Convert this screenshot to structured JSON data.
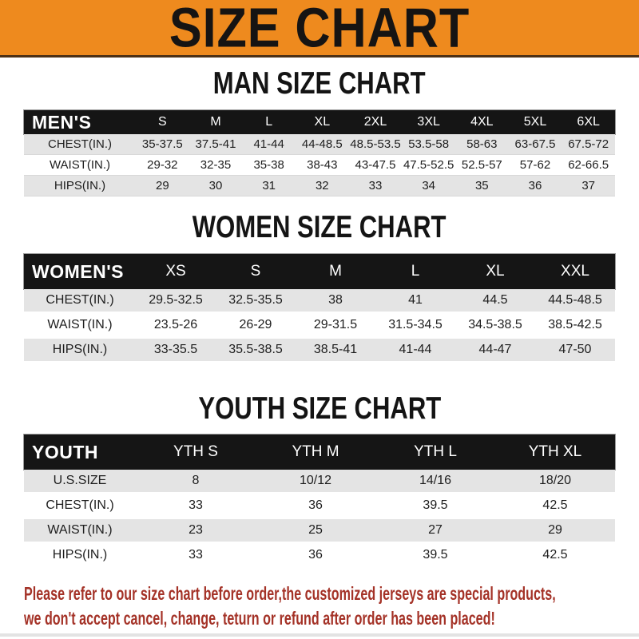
{
  "page": {
    "banner_title": "SIZE CHART",
    "colors": {
      "banner_orange": "#EE8A1E",
      "banner_underline": "#4C3015",
      "band_black": "#151515",
      "row_stripe_gray": "#E4E4E4",
      "footer_red": "#A43227"
    }
  },
  "chart_data": [
    {
      "type": "table",
      "title": "MAN SIZE CHART",
      "band_label": "MEN'S",
      "columns": [
        "S",
        "M",
        "L",
        "XL",
        "2XL",
        "3XL",
        "4XL",
        "5XL",
        "6XL"
      ],
      "rows": [
        {
          "label": "CHEST(IN.)",
          "values": [
            "35-37.5",
            "37.5-41",
            "41-44",
            "44-48.5",
            "48.5-53.5",
            "53.5-58",
            "58-63",
            "63-67.5",
            "67.5-72"
          ]
        },
        {
          "label": "WAIST(IN.)",
          "values": [
            "29-32",
            "32-35",
            "35-38",
            "38-43",
            "43-47.5",
            "47.5-52.5",
            "52.5-57",
            "57-62",
            "62-66.5"
          ]
        },
        {
          "label": "HIPS(IN.)",
          "values": [
            "29",
            "30",
            "31",
            "32",
            "33",
            "34",
            "35",
            "36",
            "37"
          ]
        }
      ]
    },
    {
      "type": "table",
      "title": "WOMEN SIZE CHART",
      "band_label": "WOMEN'S",
      "columns": [
        "XS",
        "S",
        "M",
        "L",
        "XL",
        "XXL"
      ],
      "rows": [
        {
          "label": "CHEST(IN.)",
          "values": [
            "29.5-32.5",
            "32.5-35.5",
            "38",
            "41",
            "44.5",
            "44.5-48.5"
          ]
        },
        {
          "label": "WAIST(IN.)",
          "values": [
            "23.5-26",
            "26-29",
            "29-31.5",
            "31.5-34.5",
            "34.5-38.5",
            "38.5-42.5"
          ]
        },
        {
          "label": "HIPS(IN.)",
          "values": [
            "33-35.5",
            "35.5-38.5",
            "38.5-41",
            "41-44",
            "44-47",
            "47-50"
          ]
        }
      ]
    },
    {
      "type": "table",
      "title": "YOUTH SIZE CHART",
      "band_label": "YOUTH",
      "columns": [
        "YTH S",
        "YTH M",
        "YTH L",
        "YTH XL"
      ],
      "rows": [
        {
          "label": "U.S.SIZE",
          "values": [
            "8",
            "10/12",
            "14/16",
            "18/20"
          ]
        },
        {
          "label": "CHEST(IN.)",
          "values": [
            "33",
            "36",
            "39.5",
            "42.5"
          ]
        },
        {
          "label": "WAIST(IN.)",
          "values": [
            "23",
            "25",
            "27",
            "29"
          ]
        },
        {
          "label": "HIPS(IN.)",
          "values": [
            "33",
            "36",
            "39.5",
            "42.5"
          ]
        }
      ]
    }
  ],
  "footer": {
    "line1": "Please refer to our size chart before order,the customized jerseys are special products,",
    "line2": "we don't accept cancel, change, teturn or refund after order has been placed!"
  }
}
